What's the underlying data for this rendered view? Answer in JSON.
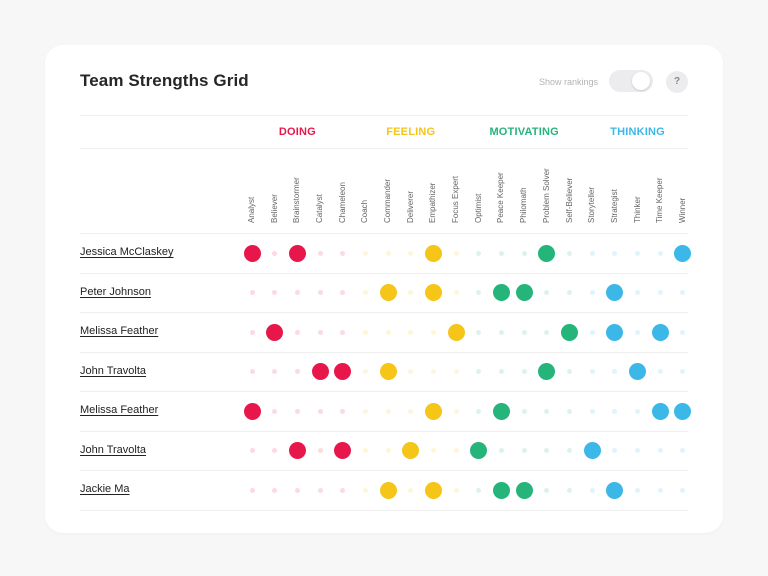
{
  "title": "Team Strengths Grid",
  "show_rankings_label": "Show rankings",
  "help_label": "?",
  "categories": [
    {
      "key": "doing",
      "label": "DOING",
      "color": "#e8174b"
    },
    {
      "key": "feeling",
      "label": "FEELING",
      "color": "#f5c518"
    },
    {
      "key": "motivating",
      "label": "MOTIVATING",
      "color": "#25b47a"
    },
    {
      "key": "thinking",
      "label": "THINKING",
      "color": "#3bb8e8"
    }
  ],
  "strengths": [
    {
      "label": "Analyst",
      "category": "doing"
    },
    {
      "label": "Believer",
      "category": "doing"
    },
    {
      "label": "Brainstormer",
      "category": "doing"
    },
    {
      "label": "Catalyst",
      "category": "doing"
    },
    {
      "label": "Chameleon",
      "category": "doing"
    },
    {
      "label": "Coach",
      "category": "feeling"
    },
    {
      "label": "Commander",
      "category": "feeling"
    },
    {
      "label": "Deliverer",
      "category": "feeling"
    },
    {
      "label": "Empathizer",
      "category": "feeling"
    },
    {
      "label": "Focus Expert",
      "category": "feeling"
    },
    {
      "label": "Optimist",
      "category": "motivating"
    },
    {
      "label": "Peace Keeper",
      "category": "motivating"
    },
    {
      "label": "Philomath",
      "category": "motivating"
    },
    {
      "label": "Problem Solver",
      "category": "motivating"
    },
    {
      "label": "Self-Believer",
      "category": "motivating"
    },
    {
      "label": "Storyteller",
      "category": "thinking"
    },
    {
      "label": "Strategist",
      "category": "thinking"
    },
    {
      "label": "Thinker",
      "category": "thinking"
    },
    {
      "label": "Time Keeper",
      "category": "thinking"
    },
    {
      "label": "Winner",
      "category": "thinking"
    }
  ],
  "people": [
    {
      "name": "Jessica McClaskey",
      "strengths": [
        0,
        2,
        8,
        13,
        19
      ]
    },
    {
      "name": "Peter Johnson",
      "strengths": [
        6,
        8,
        11,
        12,
        16
      ]
    },
    {
      "name": "Melissa Feather",
      "strengths": [
        1,
        9,
        14,
        16,
        18
      ]
    },
    {
      "name": "John Travolta",
      "strengths": [
        3,
        4,
        6,
        13,
        17
      ]
    },
    {
      "name": "Melissa Feather",
      "strengths": [
        0,
        8,
        11,
        18,
        19
      ]
    },
    {
      "name": "John Travolta",
      "strengths": [
        2,
        4,
        7,
        10,
        15
      ]
    },
    {
      "name": "Jackie Ma",
      "strengths": [
        6,
        8,
        11,
        12,
        16
      ]
    }
  ]
}
